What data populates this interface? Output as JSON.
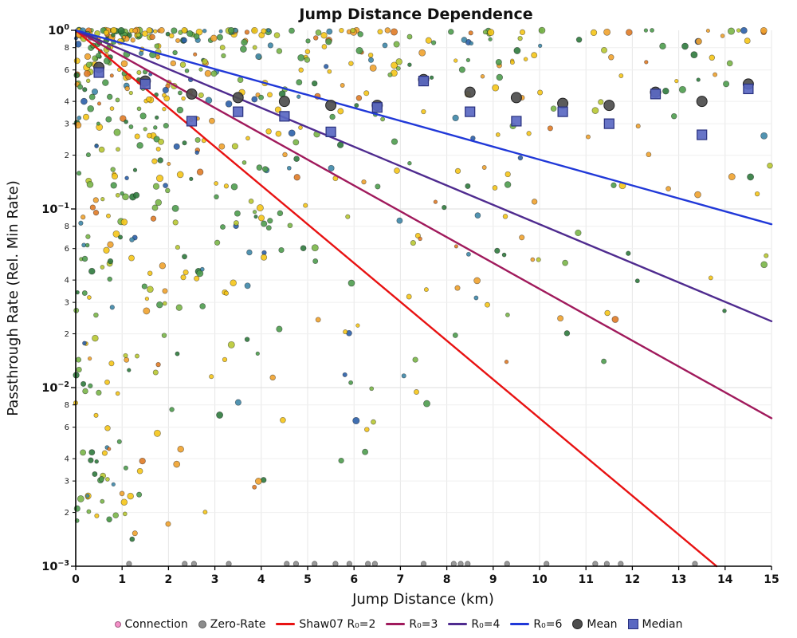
{
  "title": "Jump Distance Dependence",
  "axes": {
    "x": {
      "label": "Jump Distance (km)",
      "min": 0,
      "max": 15,
      "ticks": [
        0,
        1,
        2,
        3,
        4,
        5,
        6,
        7,
        8,
        9,
        10,
        11,
        12,
        13,
        14,
        15
      ]
    },
    "y": {
      "label": "Passthrough Rate (Rel. Min Rate)",
      "scale": "log",
      "max_exp": 0,
      "min_exp": -3,
      "major_exps": [
        0,
        -1,
        -2,
        -3
      ],
      "minor_labels": [
        8,
        6,
        4,
        3,
        2
      ]
    }
  },
  "chart_data": {
    "type": "scatter",
    "title": "Jump Distance Dependence",
    "xlabel": "Jump Distance (km)",
    "ylabel": "Passthrough Rate (Rel. Min Rate)",
    "xlim": [
      0,
      15
    ],
    "ylim": [
      0.001,
      1
    ],
    "y_scale": "log",
    "grid": true,
    "legend_position": "bottom",
    "model_lines": [
      {
        "name": "Shaw07 R₀=2",
        "r0": 2,
        "color": "#e81212",
        "formula": "y = exp(-x/2)"
      },
      {
        "name": "R₀=3",
        "r0": 3,
        "color": "#a01a5c",
        "formula": "y = exp(-x/3)"
      },
      {
        "name": "R₀=4",
        "r0": 4,
        "color": "#4f2b8f",
        "formula": "y = exp(-x/4)"
      },
      {
        "name": "R₀=6",
        "r0": 6,
        "color": "#2038d8",
        "formula": "y = exp(-x/6)"
      }
    ],
    "mean": {
      "name": "Mean",
      "color": "#4d4d4d",
      "x": [
        0.5,
        1.5,
        2.5,
        3.5,
        4.5,
        5.5,
        6.5,
        7.5,
        8.5,
        9.5,
        10.5,
        11.5,
        12.5,
        13.5,
        14.5
      ],
      "y": [
        0.62,
        0.52,
        0.44,
        0.42,
        0.4,
        0.38,
        0.38,
        0.53,
        0.45,
        0.42,
        0.39,
        0.38,
        0.45,
        0.4,
        0.5
      ]
    },
    "median": {
      "name": "Median",
      "color": "#5a68c2",
      "x": [
        0.5,
        1.5,
        2.5,
        3.5,
        4.5,
        5.5,
        6.5,
        7.5,
        8.5,
        9.5,
        10.5,
        11.5,
        12.5,
        13.5,
        14.5
      ],
      "y": [
        0.58,
        0.5,
        0.31,
        0.35,
        0.33,
        0.27,
        0.37,
        0.52,
        0.35,
        0.31,
        0.35,
        0.3,
        0.44,
        0.26,
        0.47
      ]
    },
    "zero_rate_x": [
      1.15,
      2.35,
      2.55,
      3.3,
      4.55,
      4.75,
      5.15,
      5.6,
      5.9,
      6.3,
      6.45,
      7.5,
      8.15,
      8.3,
      8.45,
      9.3,
      10.15,
      11.2,
      11.45,
      11.75,
      13.35
    ],
    "scatter": {
      "count": 680,
      "seed": 20240711,
      "exp_frac": 0.7,
      "exp_scale": 2.7,
      "depth_taper": 0.5,
      "depth_power": 2.4,
      "r_min": 2.2,
      "r_range": 2.0,
      "colors": [
        {
          "c": "#4e9c4e",
          "w": 0.2
        },
        {
          "c": "#2f7a3d",
          "w": 0.08
        },
        {
          "c": "#7ab648",
          "w": 0.12
        },
        {
          "c": "#b8c832",
          "w": 0.08
        },
        {
          "c": "#f5c518",
          "w": 0.22
        },
        {
          "c": "#f0a22e",
          "w": 0.14
        },
        {
          "c": "#e07b26",
          "w": 0.06
        },
        {
          "c": "#3e87a8",
          "w": 0.06
        },
        {
          "c": "#2b5fa8",
          "w": 0.04
        }
      ]
    }
  },
  "legend": {
    "items": [
      {
        "label": "Connection",
        "marker": "dot",
        "color": "#f590c8",
        "size": 6
      },
      {
        "label": "Zero-Rate",
        "marker": "dot",
        "color": "#8c8c8c",
        "size": 8
      },
      {
        "label": "Shaw07 R₀=2",
        "marker": "line",
        "color": "#e81212"
      },
      {
        "label": "R₀=3",
        "marker": "line",
        "color": "#a01a5c"
      },
      {
        "label": "R₀=4",
        "marker": "line",
        "color": "#4f2b8f"
      },
      {
        "label": "R₀=6",
        "marker": "line",
        "color": "#2038d8"
      },
      {
        "label": "Mean",
        "marker": "circle",
        "color": "#4d4d4d"
      },
      {
        "label": "Median",
        "marker": "square",
        "color": "#5a68c2"
      }
    ]
  }
}
